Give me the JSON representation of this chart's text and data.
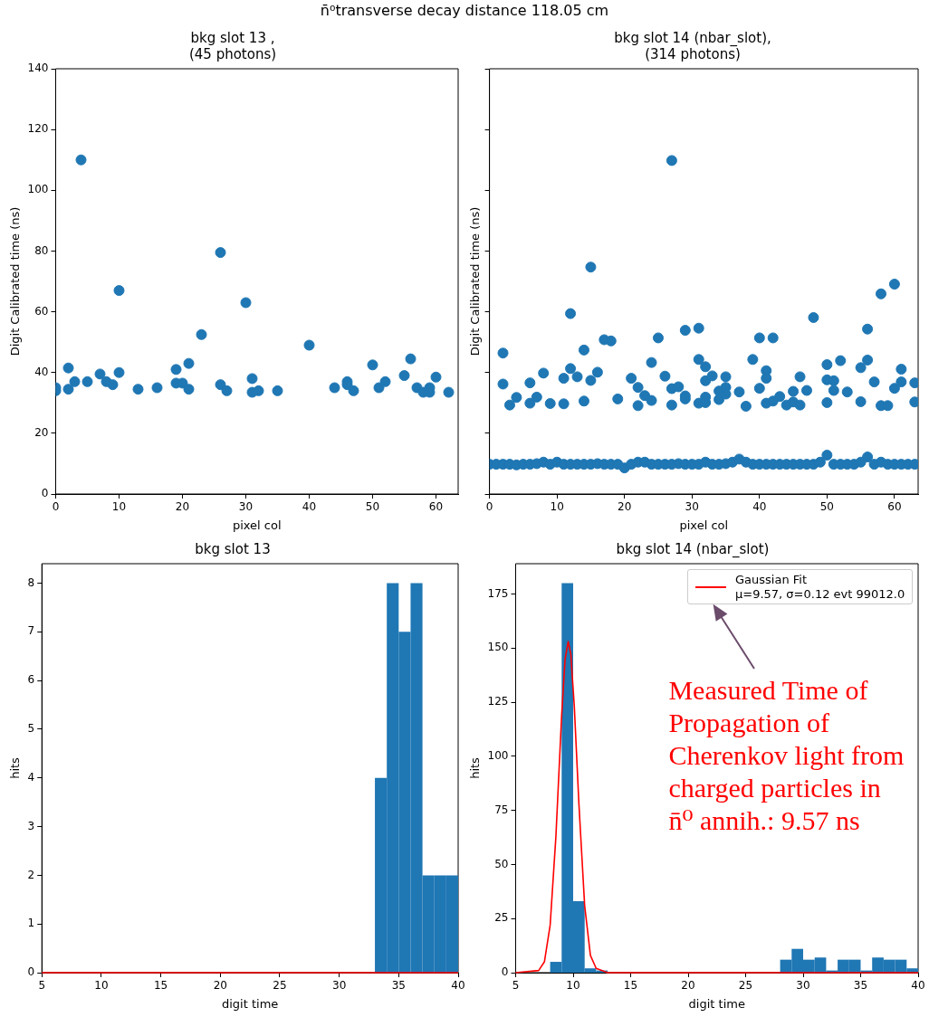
{
  "chart_data": [
    {
      "type": "scatter",
      "title": "bkg slot 13 ,\n(45 photons)",
      "xlabel": "pixel col",
      "ylabel": "Digit Calibrated time (ns)",
      "annotations": [
        "n̄⁰transverse decay distance 118.05 cm"
      ],
      "xlim": [
        0,
        63.5
      ],
      "ylim": [
        0,
        140
      ],
      "xticks": [
        0,
        10,
        20,
        30,
        40,
        50,
        60
      ],
      "yticks": [
        0,
        20,
        40,
        60,
        80,
        100,
        120,
        140
      ],
      "marker": "circle",
      "series": [
        {
          "color": "#1f77b4",
          "x": [
            0,
            0,
            2,
            2,
            3,
            4,
            5,
            7,
            8,
            9,
            10,
            10,
            13,
            16,
            19,
            19,
            20,
            21,
            21,
            23,
            26,
            26,
            27,
            30,
            31,
            31,
            32,
            35,
            40,
            44,
            46,
            46,
            47,
            50,
            51,
            52,
            55,
            56,
            57,
            58,
            59,
            59,
            60,
            62
          ],
          "values": [
            34,
            35,
            41.5,
            34.5,
            37,
            110,
            37,
            39.5,
            37,
            36,
            67,
            40,
            34.5,
            35,
            41,
            36.5,
            36.5,
            43,
            34.5,
            52.5,
            79.5,
            36,
            34,
            63,
            38,
            33.5,
            34,
            34,
            49,
            35,
            37,
            36,
            34,
            42.5,
            35,
            37,
            39,
            44.5,
            35,
            33.5,
            35,
            33.5,
            38.5,
            33.5
          ]
        }
      ]
    },
    {
      "type": "scatter",
      "title": "bkg slot 14 (nbar_slot),\n(314 photons)",
      "xlabel": "pixel col",
      "ylabel": "Digit Calibrated time (ns)",
      "xlim": [
        0,
        63.5
      ],
      "ylim": [
        0,
        140
      ],
      "xticks": [
        0,
        10,
        20,
        30,
        40,
        50,
        60
      ],
      "yticks": [
        0,
        20,
        40,
        60,
        80,
        100,
        120,
        140
      ],
      "tick_labels": "x",
      "marker": "circle",
      "series": [
        {
          "color": "#1f77b4",
          "x": [
            2,
            2,
            3,
            4,
            6,
            6,
            7,
            8,
            9,
            11,
            11,
            12,
            12,
            13,
            14,
            14,
            15,
            15,
            16,
            17,
            18,
            19,
            21,
            22,
            22,
            23,
            24,
            24,
            25,
            26,
            27,
            27,
            27,
            28,
            29,
            29,
            29,
            31,
            31,
            31,
            32,
            32,
            32,
            32,
            33,
            34,
            34,
            35,
            35,
            35,
            37,
            38,
            39,
            40,
            40,
            41,
            41,
            41,
            42,
            42,
            43,
            44,
            45,
            45,
            46,
            46,
            47,
            48,
            50,
            50,
            50,
            51,
            51,
            52,
            53,
            55,
            55,
            56,
            56,
            57,
            58,
            58,
            59,
            60,
            60,
            61,
            61,
            63,
            63,
            0,
            1,
            2,
            3,
            4,
            5,
            6,
            7,
            8,
            9,
            10,
            11,
            12,
            13,
            14,
            15,
            16,
            17,
            18,
            19,
            20,
            21,
            22,
            23,
            24,
            25,
            26,
            27,
            28,
            29,
            30,
            31,
            32,
            33,
            34,
            35,
            36,
            37,
            38,
            39,
            40,
            41,
            42,
            43,
            44,
            45,
            46,
            47,
            48,
            49,
            50,
            51,
            52,
            53,
            54,
            55,
            56,
            57,
            58,
            59,
            60,
            61,
            62,
            63
          ],
          "values": [
            46.4,
            36.2,
            29.3,
            31.8,
            36.6,
            29.9,
            31.9,
            39.8,
            29.8,
            38.1,
            29.7,
            59.4,
            41.3,
            38.6,
            47.4,
            30.6,
            37.4,
            74.7,
            40.1,
            50.8,
            50.4,
            31.3,
            38.1,
            35.1,
            29.1,
            32.4,
            43.3,
            30.8,
            51.4,
            38.8,
            34.7,
            29.3,
            109.8,
            35.3,
            53.9,
            32.3,
            31.3,
            54.6,
            44.3,
            29.9,
            41.9,
            37.3,
            31.9,
            30.1,
            38.9,
            33.9,
            31.1,
            38.6,
            35.1,
            32.9,
            33.6,
            28.9,
            44.3,
            51.4,
            34.8,
            40.6,
            38.1,
            29.9,
            51.4,
            30.6,
            32.1,
            29.3,
            33.8,
            30.3,
            38.6,
            29.3,
            34.1,
            58.1,
            42.6,
            37.6,
            30.1,
            37.3,
            34.1,
            43.9,
            33.6,
            41.6,
            30.4,
            54.3,
            44.1,
            36.9,
            65.9,
            29.1,
            29.1,
            69.1,
            34.8,
            41.1,
            36.9,
            36.6,
            30.3,
            9.8,
            9.8,
            9.8,
            9.8,
            9.6,
            9.8,
            9.8,
            10,
            10.5,
            9.8,
            10.5,
            9.8,
            9.8,
            9.8,
            9.8,
            9.8,
            10,
            9.8,
            9.8,
            9.8,
            8.6,
            9.8,
            10.5,
            10.5,
            9.8,
            9.8,
            9.8,
            9.8,
            10,
            9.8,
            9.8,
            9.8,
            10.5,
            9.8,
            9.8,
            10,
            10.5,
            11.5,
            10.5,
            9.8,
            9.8,
            9.8,
            9.8,
            9.8,
            9.8,
            9.8,
            9.8,
            9.8,
            9.8,
            10.5,
            12.8,
            9.8,
            9.8,
            9.8,
            9.8,
            10.5,
            12.2,
            9.8,
            10.5,
            9.8,
            9.8,
            9.8,
            9.8,
            9.8
          ]
        }
      ]
    },
    {
      "type": "histogram",
      "title": "bkg slot 13",
      "xlabel": "digit time",
      "ylabel": "hits",
      "xlim": [
        5,
        40
      ],
      "ylim": [
        0,
        8.4
      ],
      "xticks": [
        5,
        10,
        15,
        20,
        25,
        30,
        35,
        40
      ],
      "yticks": [
        0,
        1,
        2,
        3,
        4,
        5,
        6,
        7,
        8
      ],
      "series": [
        {
          "type": "histogram",
          "color": "#1f77b4",
          "bins": [
            33,
            34,
            35,
            36,
            37,
            38,
            39,
            40
          ],
          "values": [
            4,
            8,
            7,
            8,
            2,
            2,
            2
          ]
        },
        {
          "type": "line",
          "color": "#ff0000",
          "x": [
            5,
            40
          ],
          "values": [
            0,
            0
          ]
        }
      ]
    },
    {
      "type": "histogram",
      "title": "bkg slot 14 (nbar_slot)",
      "xlabel": "digit time",
      "ylabel": "hits",
      "xlim": [
        5,
        40
      ],
      "ylim": [
        0,
        189
      ],
      "xticks": [
        5,
        10,
        15,
        20,
        25,
        30,
        35,
        40
      ],
      "yticks": [
        0,
        25,
        50,
        75,
        100,
        125,
        150,
        175
      ],
      "legend": "top right",
      "annotations": [
        "Measured Time of Propagation of Cherenkov light from charged particles in n̄⁰ annih.: 9.57 ns"
      ],
      "series": [
        {
          "type": "histogram",
          "color": "#1f77b4",
          "bins": [
            8,
            9,
            10,
            11,
            12,
            13,
            14,
            15,
            16,
            17,
            18,
            19,
            20,
            21,
            22,
            23,
            24,
            25,
            26,
            27,
            28,
            29,
            30,
            31,
            32,
            33,
            34,
            35,
            36,
            37,
            38,
            39,
            40
          ],
          "values": [
            5,
            180,
            33,
            2,
            1,
            0,
            0,
            0,
            0,
            0,
            0,
            0,
            0,
            0,
            0,
            0,
            0,
            0,
            0,
            0,
            6,
            11,
            6,
            7,
            1,
            6,
            6,
            1,
            7,
            6,
            6,
            2
          ]
        },
        {
          "type": "line",
          "name": "Gaussian Fit\nμ=9.57, σ=0.12 evt 99012.0",
          "color": "#ff0000",
          "x": [
            5,
            7,
            7.5,
            8,
            8.5,
            9,
            9.3,
            9.57,
            9.8,
            10.1,
            10.5,
            11,
            11.5,
            12,
            13,
            40
          ],
          "values": [
            0,
            1,
            5,
            22,
            63,
            119,
            145,
            153,
            147,
            123,
            78,
            31,
            8,
            2,
            0,
            0
          ]
        }
      ]
    }
  ]
}
